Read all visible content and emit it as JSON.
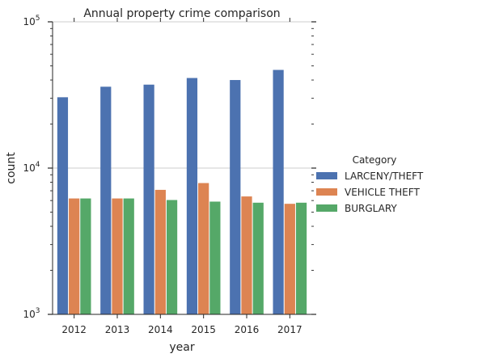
{
  "chart_data": {
    "type": "bar",
    "title": "Annual property crime comparison",
    "xlabel": "year",
    "ylabel": "count",
    "yscale": "log",
    "ylim": [
      1000,
      100000
    ],
    "y_tick_labels": [
      {
        "value": 1000,
        "base": "10",
        "exp": "3"
      },
      {
        "value": 10000,
        "base": "10",
        "exp": "4"
      },
      {
        "value": 100000,
        "base": "10",
        "exp": "5"
      }
    ],
    "grid": "horizontal major lines",
    "categories": [
      "2012",
      "2013",
      "2014",
      "2015",
      "2016",
      "2017"
    ],
    "legend": {
      "title": "Category",
      "placement": "right, outside plot"
    },
    "series": [
      {
        "name": "LARCENY/THEFT",
        "color": "#4c72b0",
        "values": [
          30500,
          36000,
          37200,
          41300,
          40000,
          46900
        ]
      },
      {
        "name": "VEHICLE THEFT",
        "color": "#dd8452",
        "values": [
          6200,
          6200,
          7100,
          7900,
          6400,
          5700
        ]
      },
      {
        "name": "BURGLARY",
        "color": "#55a868",
        "values": [
          6200,
          6200,
          6050,
          5900,
          5800,
          5800
        ]
      }
    ]
  }
}
